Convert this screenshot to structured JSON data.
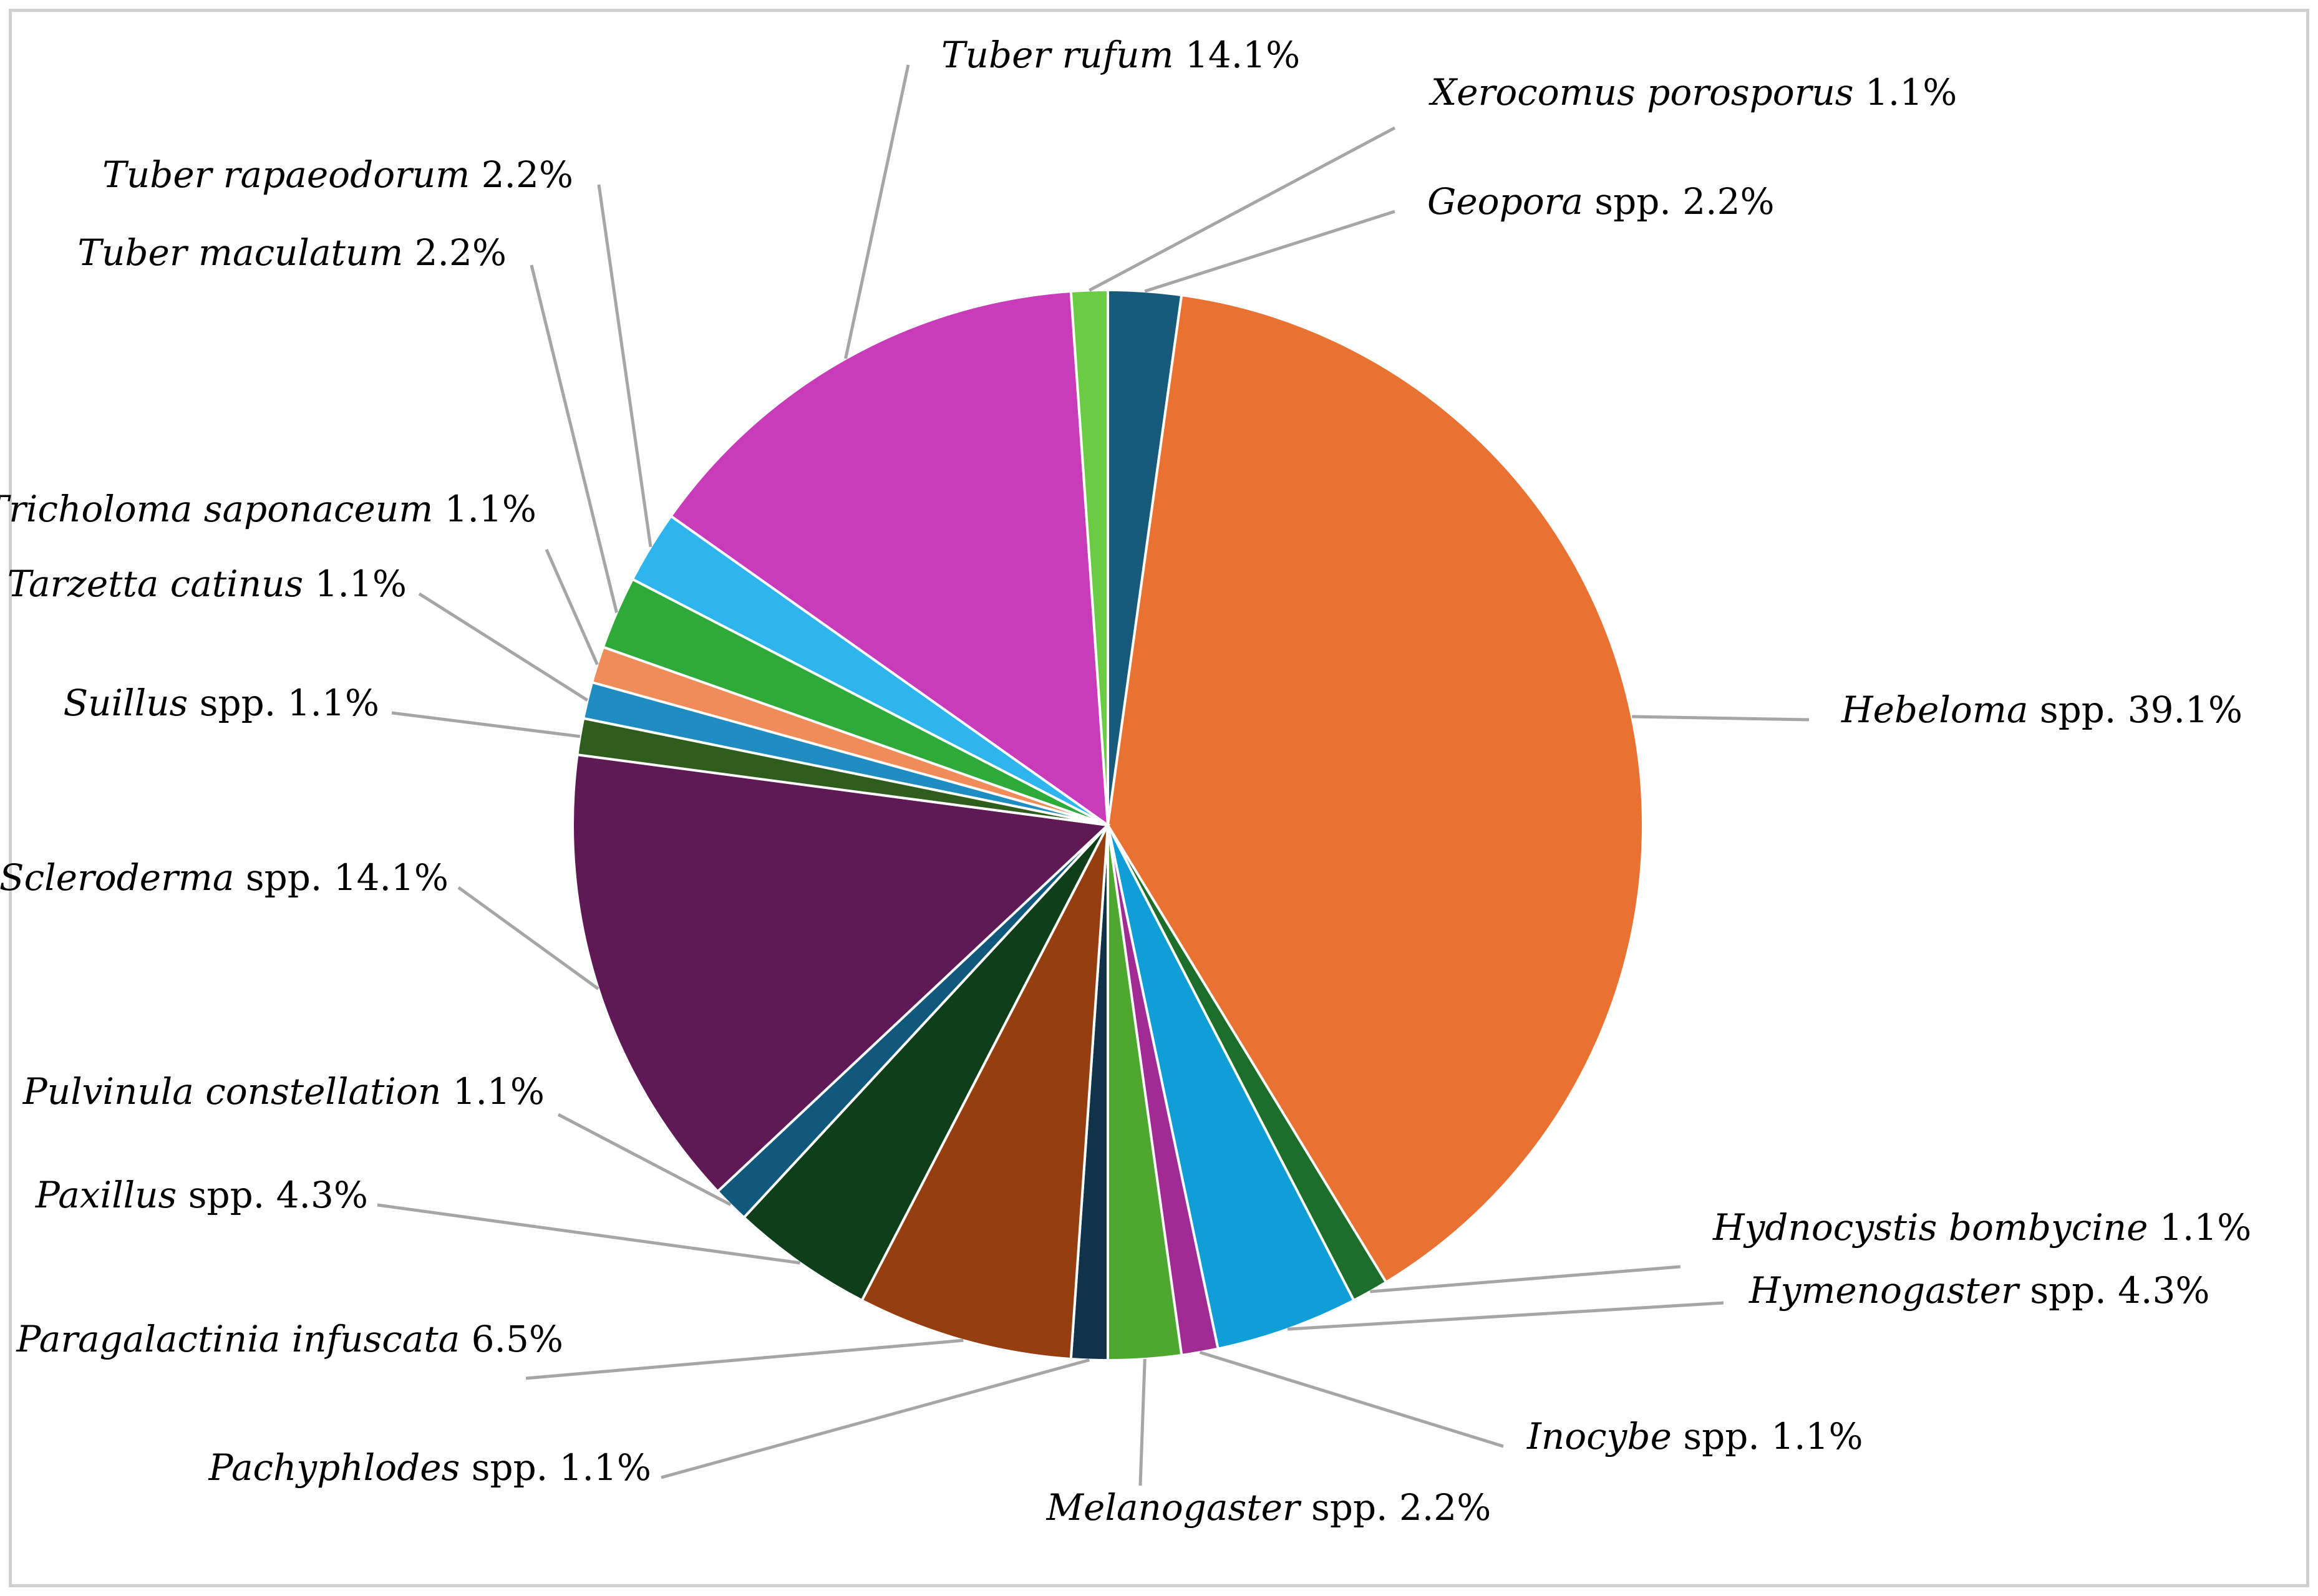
{
  "chart_data": {
    "type": "pie",
    "slices": [
      {
        "genus": "Geopora",
        "suffix": " spp. 2.2%",
        "value": 2.2,
        "color": "#175a7c"
      },
      {
        "genus": "Hebeloma",
        "suffix": " spp.  39.1%",
        "value": 39.1,
        "color": "#e97132"
      },
      {
        "genus": "Hydnocystis bombycine",
        "suffix": " 1.1%",
        "value": 1.1,
        "color": "#1d6e2a"
      },
      {
        "genus": "Hymenogaster",
        "suffix": " spp. 4.3%",
        "value": 4.3,
        "color": "#0f9ed5"
      },
      {
        "genus": "Inocybe",
        "suffix": " spp. 1.1%",
        "value": 1.1,
        "color": "#a02b93"
      },
      {
        "genus": "Melanogaster",
        "suffix": " spp. 2.2%",
        "value": 2.2,
        "color": "#4ea72e"
      },
      {
        "genus": "Pachyphlodes",
        "suffix": " spp. 1.1%",
        "value": 1.1,
        "color": "#11334a"
      },
      {
        "genus": "Paragalactinia infuscata",
        "suffix": " 6.5%",
        "value": 6.5,
        "color": "#963e0f"
      },
      {
        "genus": "Paxillus",
        "suffix": " spp. 4.3%",
        "value": 4.3,
        "color": "#0e3f1a"
      },
      {
        "genus": "Pulvinula constellation",
        "suffix": " 1.1%",
        "value": 1.1,
        "color": "#10587c"
      },
      {
        "genus": "Scleroderma",
        "suffix": " spp. 14.1%",
        "value": 14.1,
        "color": "#5f1a55"
      },
      {
        "genus": "Suillus",
        "suffix": " spp. 1.1%",
        "value": 1.1,
        "color": "#2f5d1d"
      },
      {
        "genus": "Tarzetta catinus",
        "suffix": " 1.1%",
        "value": 1.1,
        "color": "#1f8cc2"
      },
      {
        "genus": "Tricholoma saponaceum",
        "suffix": " 1.1%",
        "value": 1.1,
        "color": "#f08c5a"
      },
      {
        "genus": "Tuber maculatum",
        "suffix": " 2.2%",
        "value": 2.2,
        "color": "#2eaa3a"
      },
      {
        "genus": "Tuber rapaeodorum",
        "suffix": " 2.2%",
        "value": 2.2,
        "color": "#2fb5ee"
      },
      {
        "genus": "Tuber rufum",
        "suffix": " 14.1%",
        "value": 14.1,
        "color": "#c83cb9"
      },
      {
        "genus": "Xerocomus porosporus",
        "suffix": " 1.1%",
        "value": 1.1,
        "color": "#6ccb45"
      }
    ]
  }
}
